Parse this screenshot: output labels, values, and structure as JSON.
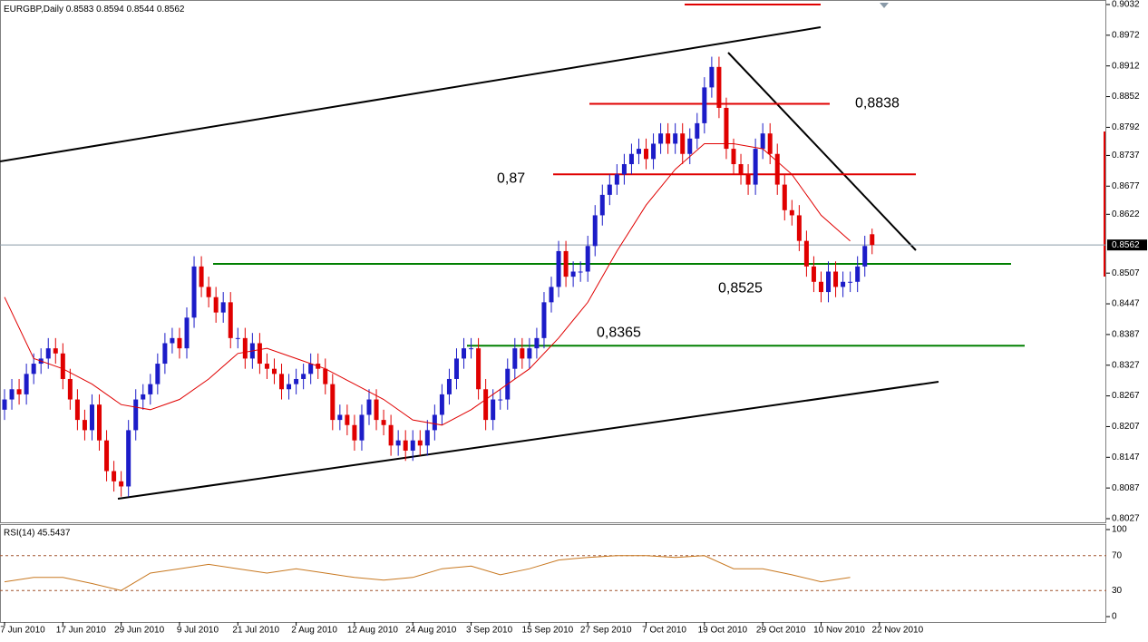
{
  "chart_data": [
    {
      "type": "candlestick",
      "title": "EURGBP,Daily",
      "up_color": "#1c1cc8",
      "down_color": "#e00000",
      "ylim": [
        0.8027,
        0.9032
      ],
      "yticks": [
        0.9032,
        0.8972,
        0.8912,
        0.8852,
        0.8792,
        0.8737,
        0.8677,
        0.8622,
        0.8507,
        0.8447,
        0.8387,
        0.8327,
        0.8267,
        0.8207,
        0.8147,
        0.8087,
        0.8027
      ],
      "xticks": [
        {
          "value": 0,
          "label": "7 Jun 2010"
        },
        {
          "value": 8,
          "label": "17 Jun 2010"
        },
        {
          "value": 16,
          "label": "29 Jun 2010"
        },
        {
          "value": 24,
          "label": "9 Jul 2010"
        },
        {
          "value": 32,
          "label": "21 Jul 2010"
        },
        {
          "value": 40,
          "label": "2 Aug 2010"
        },
        {
          "value": 48,
          "label": "12 Aug 2010"
        },
        {
          "value": 56,
          "label": "24 Aug 2010"
        },
        {
          "value": 64,
          "label": "3 Sep 2010"
        },
        {
          "value": 72,
          "label": "15 Sep 2010"
        },
        {
          "value": 80,
          "label": "27 Sep 2010"
        },
        {
          "value": 88,
          "label": "7 Oct 2010"
        },
        {
          "value": 96,
          "label": "19 Oct 2010"
        },
        {
          "value": 104,
          "label": "29 Oct 2010"
        },
        {
          "value": 112,
          "label": "10 Nov 2010"
        },
        {
          "value": 120,
          "label": "22 Nov 2010"
        }
      ],
      "candles": [
        [
          0.824,
          0.828,
          0.822,
          0.826
        ],
        [
          0.826,
          0.83,
          0.824,
          0.828
        ],
        [
          0.828,
          0.83,
          0.825,
          0.827
        ],
        [
          0.827,
          0.833,
          0.825,
          0.831
        ],
        [
          0.831,
          0.835,
          0.829,
          0.833
        ],
        [
          0.833,
          0.836,
          0.831,
          0.834
        ],
        [
          0.834,
          0.838,
          0.832,
          0.836
        ],
        [
          0.836,
          0.838,
          0.833,
          0.835
        ],
        [
          0.835,
          0.837,
          0.828,
          0.83
        ],
        [
          0.83,
          0.832,
          0.824,
          0.826
        ],
        [
          0.826,
          0.828,
          0.82,
          0.822
        ],
        [
          0.822,
          0.824,
          0.818,
          0.82
        ],
        [
          0.82,
          0.827,
          0.818,
          0.825
        ],
        [
          0.825,
          0.827,
          0.816,
          0.818
        ],
        [
          0.818,
          0.82,
          0.81,
          0.812
        ],
        [
          0.812,
          0.814,
          0.808,
          0.81
        ],
        [
          0.81,
          0.812,
          0.807,
          0.809
        ],
        [
          0.809,
          0.822,
          0.807,
          0.82
        ],
        [
          0.82,
          0.828,
          0.818,
          0.826
        ],
        [
          0.826,
          0.829,
          0.824,
          0.827
        ],
        [
          0.827,
          0.831,
          0.825,
          0.829
        ],
        [
          0.829,
          0.835,
          0.827,
          0.833
        ],
        [
          0.833,
          0.839,
          0.831,
          0.837
        ],
        [
          0.837,
          0.84,
          0.835,
          0.838
        ],
        [
          0.838,
          0.84,
          0.834,
          0.836
        ],
        [
          0.836,
          0.844,
          0.834,
          0.842
        ],
        [
          0.842,
          0.854,
          0.84,
          0.852
        ],
        [
          0.852,
          0.854,
          0.846,
          0.848
        ],
        [
          0.848,
          0.85,
          0.844,
          0.846
        ],
        [
          0.846,
          0.848,
          0.841,
          0.843
        ],
        [
          0.843,
          0.847,
          0.841,
          0.845
        ],
        [
          0.845,
          0.847,
          0.836,
          0.838
        ],
        [
          0.838,
          0.84,
          0.836,
          0.838
        ],
        [
          0.838,
          0.84,
          0.832,
          0.834
        ],
        [
          0.834,
          0.839,
          0.832,
          0.837
        ],
        [
          0.837,
          0.839,
          0.831,
          0.833
        ],
        [
          0.833,
          0.835,
          0.83,
          0.832
        ],
        [
          0.832,
          0.834,
          0.829,
          0.831
        ],
        [
          0.831,
          0.833,
          0.826,
          0.828
        ],
        [
          0.828,
          0.831,
          0.826,
          0.829
        ],
        [
          0.829,
          0.832,
          0.827,
          0.83
        ],
        [
          0.83,
          0.833,
          0.828,
          0.831
        ],
        [
          0.831,
          0.835,
          0.829,
          0.833
        ],
        [
          0.833,
          0.835,
          0.83,
          0.832
        ],
        [
          0.832,
          0.834,
          0.827,
          0.829
        ],
        [
          0.829,
          0.831,
          0.82,
          0.822
        ],
        [
          0.822,
          0.825,
          0.82,
          0.823
        ],
        [
          0.823,
          0.825,
          0.819,
          0.821
        ],
        [
          0.821,
          0.823,
          0.816,
          0.818
        ],
        [
          0.818,
          0.825,
          0.816,
          0.823
        ],
        [
          0.823,
          0.828,
          0.821,
          0.826
        ],
        [
          0.826,
          0.828,
          0.82,
          0.822
        ],
        [
          0.822,
          0.824,
          0.819,
          0.821
        ],
        [
          0.821,
          0.823,
          0.815,
          0.817
        ],
        [
          0.817,
          0.82,
          0.815,
          0.818
        ],
        [
          0.818,
          0.82,
          0.814,
          0.816
        ],
        [
          0.816,
          0.82,
          0.814,
          0.818
        ],
        [
          0.818,
          0.82,
          0.815,
          0.817
        ],
        [
          0.817,
          0.822,
          0.815,
          0.82
        ],
        [
          0.82,
          0.825,
          0.818,
          0.823
        ],
        [
          0.823,
          0.829,
          0.821,
          0.827
        ],
        [
          0.827,
          0.832,
          0.825,
          0.83
        ],
        [
          0.83,
          0.836,
          0.828,
          0.834
        ],
        [
          0.834,
          0.838,
          0.832,
          0.836
        ],
        [
          0.836,
          0.838,
          0.834,
          0.836
        ],
        [
          0.836,
          0.838,
          0.826,
          0.828
        ],
        [
          0.828,
          0.83,
          0.82,
          0.822
        ],
        [
          0.822,
          0.828,
          0.82,
          0.826
        ],
        [
          0.826,
          0.828,
          0.824,
          0.826
        ],
        [
          0.826,
          0.834,
          0.824,
          0.832
        ],
        [
          0.832,
          0.838,
          0.83,
          0.836
        ],
        [
          0.836,
          0.838,
          0.832,
          0.834
        ],
        [
          0.834,
          0.838,
          0.832,
          0.836
        ],
        [
          0.836,
          0.84,
          0.834,
          0.838
        ],
        [
          0.838,
          0.847,
          0.836,
          0.845
        ],
        [
          0.845,
          0.85,
          0.843,
          0.848
        ],
        [
          0.848,
          0.857,
          0.846,
          0.855
        ],
        [
          0.855,
          0.857,
          0.848,
          0.85
        ],
        [
          0.85,
          0.853,
          0.848,
          0.851
        ],
        [
          0.851,
          0.853,
          0.849,
          0.851
        ],
        [
          0.851,
          0.858,
          0.849,
          0.856
        ],
        [
          0.856,
          0.864,
          0.854,
          0.862
        ],
        [
          0.862,
          0.868,
          0.86,
          0.866
        ],
        [
          0.866,
          0.87,
          0.864,
          0.868
        ],
        [
          0.868,
          0.872,
          0.866,
          0.87
        ],
        [
          0.87,
          0.874,
          0.868,
          0.872
        ],
        [
          0.872,
          0.876,
          0.87,
          0.874
        ],
        [
          0.874,
          0.877,
          0.872,
          0.875
        ],
        [
          0.875,
          0.877,
          0.871,
          0.873
        ],
        [
          0.873,
          0.878,
          0.871,
          0.876
        ],
        [
          0.876,
          0.88,
          0.874,
          0.878
        ],
        [
          0.878,
          0.88,
          0.874,
          0.876
        ],
        [
          0.876,
          0.88,
          0.874,
          0.878
        ],
        [
          0.878,
          0.88,
          0.872,
          0.874
        ],
        [
          0.874,
          0.879,
          0.872,
          0.877
        ],
        [
          0.877,
          0.882,
          0.875,
          0.88
        ],
        [
          0.88,
          0.889,
          0.878,
          0.887
        ],
        [
          0.887,
          0.893,
          0.885,
          0.891
        ],
        [
          0.891,
          0.893,
          0.881,
          0.883
        ],
        [
          0.883,
          0.885,
          0.873,
          0.875
        ],
        [
          0.875,
          0.877,
          0.87,
          0.872
        ],
        [
          0.872,
          0.874,
          0.868,
          0.87
        ],
        [
          0.87,
          0.872,
          0.866,
          0.868
        ],
        [
          0.868,
          0.877,
          0.866,
          0.875
        ],
        [
          0.875,
          0.88,
          0.873,
          0.878
        ],
        [
          0.878,
          0.88,
          0.872,
          0.874
        ],
        [
          0.874,
          0.876,
          0.866,
          0.868
        ],
        [
          0.868,
          0.87,
          0.861,
          0.863
        ],
        [
          0.863,
          0.865,
          0.86,
          0.862
        ],
        [
          0.862,
          0.864,
          0.855,
          0.857
        ],
        [
          0.857,
          0.859,
          0.85,
          0.852
        ],
        [
          0.852,
          0.854,
          0.847,
          0.849
        ],
        [
          0.849,
          0.851,
          0.845,
          0.847
        ],
        [
          0.847,
          0.853,
          0.845,
          0.851
        ],
        [
          0.851,
          0.853,
          0.846,
          0.848
        ],
        [
          0.848,
          0.851,
          0.846,
          0.849
        ],
        [
          0.849,
          0.851,
          0.847,
          0.849
        ],
        [
          0.849,
          0.854,
          0.847,
          0.852
        ],
        [
          0.852,
          0.858,
          0.85,
          0.856
        ],
        [
          0.8583,
          0.8594,
          0.8544,
          0.8562
        ]
      ],
      "ma_line": {
        "color": "#e00000",
        "x": [
          0,
          4,
          8,
          12,
          16,
          20,
          24,
          28,
          32,
          36,
          40,
          44,
          48,
          52,
          56,
          60,
          64,
          68,
          72,
          76,
          80,
          84,
          88,
          92,
          96,
          100,
          104,
          108,
          112,
          116
        ],
        "values": [
          0.846,
          0.834,
          0.832,
          0.829,
          0.825,
          0.824,
          0.826,
          0.83,
          0.835,
          0.836,
          0.834,
          0.832,
          0.829,
          0.826,
          0.822,
          0.821,
          0.824,
          0.828,
          0.832,
          0.838,
          0.845,
          0.855,
          0.864,
          0.871,
          0.876,
          0.876,
          0.875,
          0.87,
          0.862,
          0.857
        ]
      },
      "levels": [
        {
          "value": 0.8838,
          "label": "0,8838",
          "color": "#e00000"
        },
        {
          "value": 0.87,
          "label": "0,87",
          "color": "#e00000"
        },
        {
          "value": 0.8525,
          "label": "0,8525",
          "color": "#008000"
        },
        {
          "value": 0.8365,
          "label": "0,8365",
          "color": "#008000"
        }
      ]
    },
    {
      "type": "line",
      "title": "RSI(14) 45.5437",
      "color": "#c87820",
      "ylim": [
        0,
        100
      ],
      "yticks": [
        100,
        70,
        30,
        0
      ],
      "x": [
        0,
        4,
        8,
        12,
        16,
        20,
        24,
        28,
        32,
        36,
        40,
        44,
        48,
        52,
        56,
        60,
        64,
        68,
        72,
        76,
        80,
        84,
        88,
        92,
        96,
        100,
        104,
        108,
        112,
        116
      ],
      "values": [
        40,
        45,
        45,
        38,
        30,
        50,
        55,
        60,
        55,
        50,
        55,
        50,
        45,
        42,
        45,
        55,
        58,
        48,
        55,
        65,
        68,
        70,
        70,
        68,
        70,
        55,
        55,
        48,
        40,
        45
      ]
    }
  ]
}
